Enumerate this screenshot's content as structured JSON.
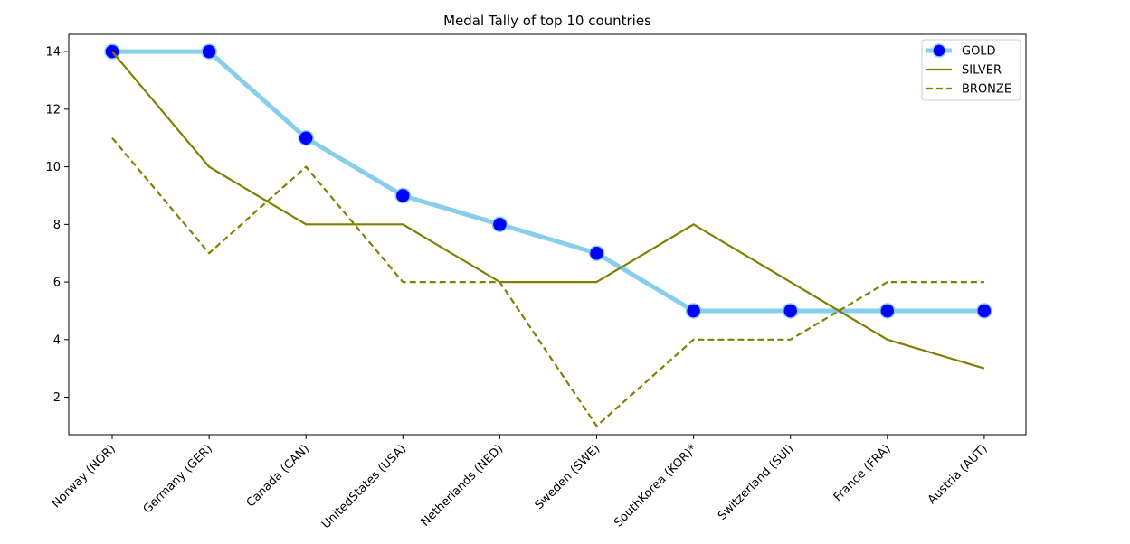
{
  "chart_data": {
    "type": "line",
    "title": "Medal Tally of top 10 countries",
    "xlabel": "",
    "ylabel": "",
    "categories": [
      "Norway (NOR)",
      "Germany (GER)",
      "Canada (CAN)",
      "UnitedStates (USA)",
      "Netherlands (NED)",
      "Sweden (SWE)",
      "SouthKorea (KOR)*",
      "Switzerland (SUI)",
      "France (FRA)",
      "Austria (AUT)"
    ],
    "ylim": [
      0.7,
      14.6
    ],
    "yticks": [
      2,
      4,
      6,
      8,
      10,
      12,
      14
    ],
    "grid": false,
    "legend_position": "top-right",
    "series": [
      {
        "name": "GOLD",
        "values": [
          14,
          14,
          11,
          9,
          8,
          7,
          5,
          5,
          5,
          5
        ],
        "color": "#87ceeb",
        "marker_color": "#0000ff",
        "style": "solid"
      },
      {
        "name": "SILVER",
        "values": [
          14,
          10,
          8,
          8,
          6,
          6,
          8,
          6,
          4,
          3
        ],
        "color": "#808000",
        "style": "solid"
      },
      {
        "name": "BRONZE",
        "values": [
          11,
          7,
          10,
          6,
          6,
          1,
          4,
          4,
          6,
          6
        ],
        "color": "#808000",
        "style": "dashed"
      }
    ]
  }
}
